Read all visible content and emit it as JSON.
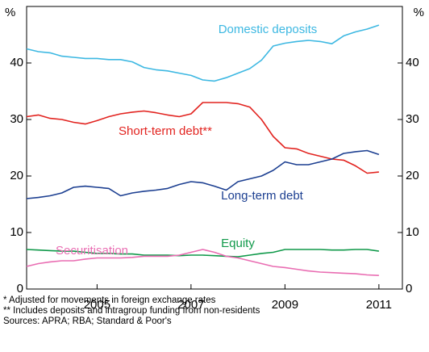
{
  "chart_data": {
    "type": "line",
    "y_label_left": "%",
    "y_label_right": "%",
    "x": [
      2003.5,
      2003.75,
      2004,
      2004.25,
      2004.5,
      2004.75,
      2005,
      2005.25,
      2005.5,
      2005.75,
      2006,
      2006.25,
      2006.5,
      2006.75,
      2007,
      2007.25,
      2007.5,
      2007.75,
      2008,
      2008.25,
      2008.5,
      2008.75,
      2009,
      2009.25,
      2009.5,
      2009.75,
      2010,
      2010.25,
      2010.5,
      2010.75,
      2011
    ],
    "series": [
      {
        "name": "Domestic deposits",
        "color": "#3db8e2",
        "values": [
          42.5,
          42,
          41.8,
          41.2,
          41,
          40.8,
          40.8,
          40.6,
          40.6,
          40.2,
          39.2,
          38.8,
          38.6,
          38.2,
          37.8,
          37,
          36.8,
          37.4,
          38.2,
          39,
          40.5,
          43,
          43.5,
          43.8,
          44,
          43.8,
          43.4,
          44.8,
          45.5,
          46,
          46.7
        ]
      },
      {
        "name": "Short-term debt**",
        "color": "#e2231f",
        "values": [
          30.5,
          30.8,
          30.2,
          30,
          29.5,
          29.2,
          29.8,
          30.5,
          31,
          31.3,
          31.5,
          31.2,
          30.8,
          30.5,
          31,
          33,
          33,
          33,
          32.8,
          32.2,
          30,
          27,
          25,
          24.8,
          24,
          23.5,
          23,
          22.8,
          21.8,
          20.5,
          20.7
        ]
      },
      {
        "name": "Long-term debt",
        "color": "#1c3f91",
        "values": [
          16,
          16.2,
          16.5,
          17,
          18,
          18.2,
          18,
          17.8,
          16.5,
          17,
          17.3,
          17.5,
          17.8,
          18.5,
          19,
          18.8,
          18.2,
          17.5,
          19,
          19.5,
          20,
          21,
          22.5,
          22,
          22,
          22.5,
          23,
          24,
          24.3,
          24.5,
          23.8
        ]
      },
      {
        "name": "Equity",
        "color": "#10994a",
        "values": [
          7,
          6.9,
          6.8,
          6.7,
          6.7,
          6.5,
          6.3,
          6.3,
          6.2,
          6.2,
          6,
          6,
          6,
          5.9,
          6,
          6,
          5.9,
          5.8,
          5.7,
          6,
          6.3,
          6.5,
          7,
          7,
          7,
          7,
          6.9,
          6.9,
          7,
          7,
          6.7
        ]
      },
      {
        "name": "Securitisation",
        "color": "#e96db2",
        "values": [
          4,
          4.5,
          4.8,
          5,
          5,
          5.3,
          5.5,
          5.5,
          5.5,
          5.6,
          5.8,
          5.8,
          5.8,
          6,
          6.5,
          7,
          6.5,
          5.8,
          5.5,
          5,
          4.5,
          4,
          3.8,
          3.5,
          3.2,
          3,
          2.9,
          2.8,
          2.7,
          2.5,
          2.4
        ]
      }
    ],
    "xlim": [
      2003.5,
      2011.5
    ],
    "xticks": [
      2005,
      2007,
      2009,
      2011
    ],
    "ylim": [
      0,
      50
    ],
    "yticks": [
      0,
      10,
      20,
      30,
      40
    ],
    "notes": [
      "*   Adjusted for movements in foreign exchange rates",
      "**  Includes deposits and intragroup funding from non-residents",
      "Sources: APRA; RBA; Standard & Poor's"
    ]
  }
}
